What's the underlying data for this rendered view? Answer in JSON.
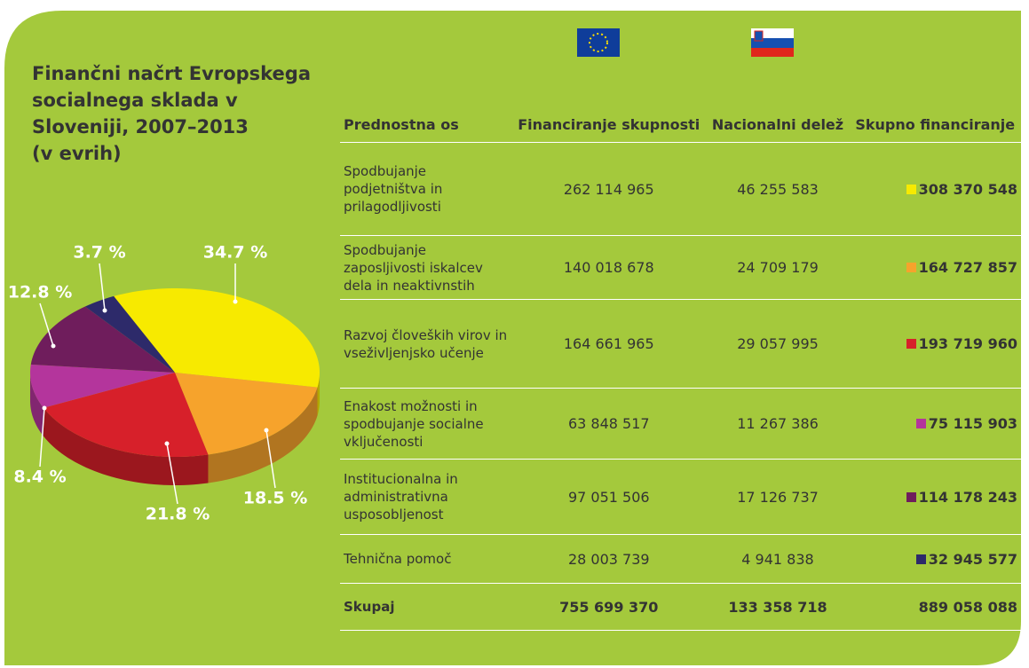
{
  "chart_data": {
    "type": "pie",
    "title": "Finančni načrt Evropskega socialnega sklada v Sloveniji, 2007–2013",
    "subtitle": "(v evrih)",
    "values": [
      34.7,
      18.5,
      21.8,
      8.4,
      12.8,
      3.7
    ],
    "value_labels": [
      "34.7 %",
      "18.5 %",
      "21.8 %",
      "8.4 %",
      "12.8 %",
      "3.7 %"
    ],
    "colors": [
      "#f7ea00",
      "#f6a32c",
      "#d7202a",
      "#b4359c",
      "#6f1d5c",
      "#2d2a6a"
    ]
  },
  "table": {
    "headers": [
      "Prednostna os",
      "Financiranje skupnosti",
      "Nacionalni delež",
      "Skupno financiranje"
    ],
    "rows": [
      [
        "Spodbujanje podjetništva in prilagodljivosti",
        "262 114 965",
        "46 255 583",
        "308 370 548"
      ],
      [
        "Spodbujanje zaposljivosti iskalcev dela in neaktivnstih",
        "140 018 678",
        "24 709 179",
        "164 727 857"
      ],
      [
        "Razvoj človeških virov in vseživljenjsko učenje",
        "164 661 965",
        "29 057 995",
        "193 719 960"
      ],
      [
        "Enakost možnosti in spodbujanje socialne vključenosti",
        "63 848 517",
        "11 267 386",
        "75 115 903"
      ],
      [
        "Institucionalna in administrativna usposobljenost",
        "97 051 506",
        "17 126 737",
        "114 178 243"
      ],
      [
        "Tehnična pomoč",
        "28 003 739",
        "4 941 838",
        "32 945 577"
      ]
    ],
    "total": [
      "Skupaj",
      "755 699 370",
      "133 358 718",
      "889 058 088"
    ]
  }
}
